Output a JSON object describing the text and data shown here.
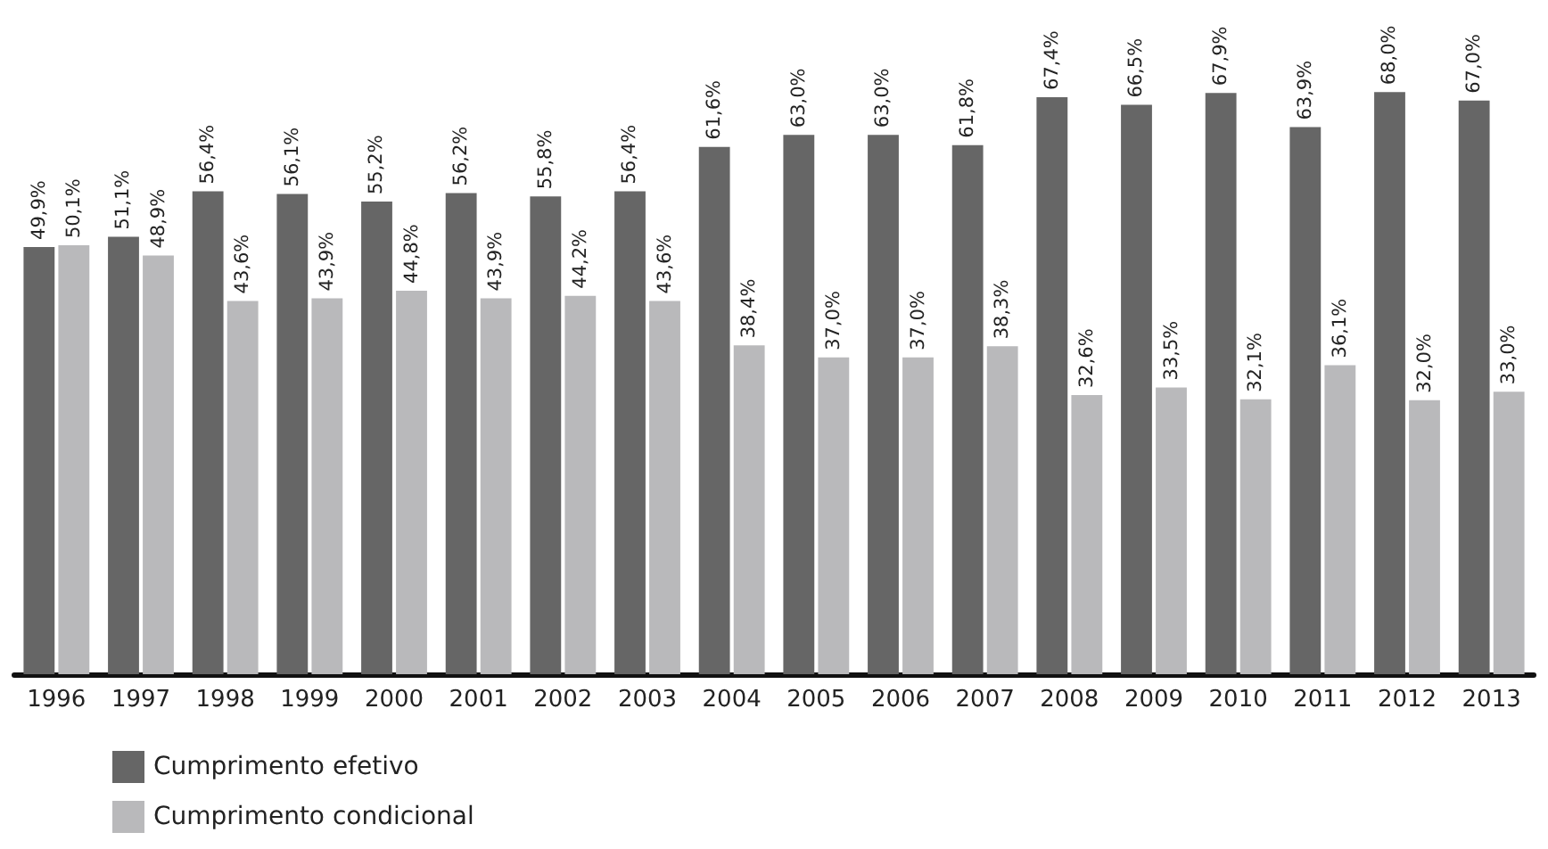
{
  "chart_data": {
    "type": "bar",
    "categories": [
      "1996",
      "1997",
      "1998",
      "1999",
      "2000",
      "2001",
      "2002",
      "2003",
      "2004",
      "2005",
      "2006",
      "2007",
      "2008",
      "2009",
      "2010",
      "2011",
      "2012",
      "2013"
    ],
    "legend": "bottom left",
    "series": [
      {
        "name": "Cumprimento efetivo",
        "color": "#666666",
        "values": [
          49.9,
          51.1,
          56.4,
          56.1,
          55.2,
          56.2,
          55.8,
          56.4,
          61.6,
          63.0,
          63.0,
          61.8,
          67.4,
          66.5,
          67.9,
          63.9,
          68.0,
          67.0
        ],
        "value_labels": [
          "49,9%",
          "51,1%",
          "56,4%",
          "56,1%",
          "55,2%",
          "56,2%",
          "55,8%",
          "56,4%",
          "61,6%",
          "63,0%",
          "63,0%",
          "61,8%",
          "67,4%",
          "66,5%",
          "67,9%",
          "63,9%",
          "68,0%",
          "67,0%"
        ]
      },
      {
        "name": "Cumprimento condicional",
        "color": "#b9b9bb",
        "values": [
          50.1,
          48.9,
          43.6,
          43.9,
          44.8,
          43.9,
          44.2,
          43.6,
          38.4,
          37.0,
          37.0,
          38.3,
          32.6,
          33.5,
          32.1,
          36.1,
          32.0,
          33.0
        ],
        "value_labels": [
          "50,1%",
          "48,9%",
          "43,6%",
          "43,9%",
          "44,8%",
          "43,9%",
          "44,2%",
          "43,6%",
          "38,4%",
          "37,0%",
          "37,0%",
          "38,3%",
          "32,6%",
          "33,5%",
          "32,1%",
          "36,1%",
          "32,0%",
          "33,0%"
        ]
      }
    ]
  }
}
